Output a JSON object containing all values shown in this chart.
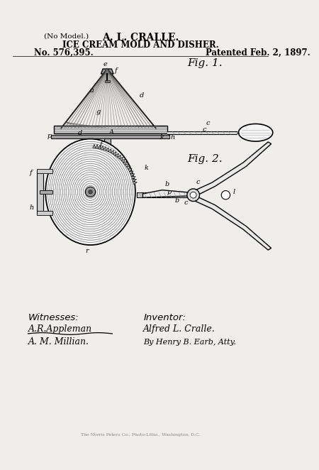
{
  "bg_color": "#f0eeeb",
  "title1": "A. L. CRALLE.",
  "title2": "ICE CREAM MOLD AND DISHER.",
  "no_model": "(No Model.)",
  "patent_no": "No. 576,395.",
  "patent_date": "Patented Feb. 2, 1897.",
  "fig1_label": "Fig. 1.",
  "fig2_label": "Fig. 2.",
  "witnesses_label": "Witnesses:",
  "witness1": "A.R.Appleman",
  "witness2": "A. M. Millian.",
  "inventor_label": "Inventor:",
  "inventor": "Alfred L. Cralle.",
  "attorney": "By Henry B. Earb, Atty.",
  "printer": "The Norris Peters Co., Photo-Litho., Washington, D.C."
}
